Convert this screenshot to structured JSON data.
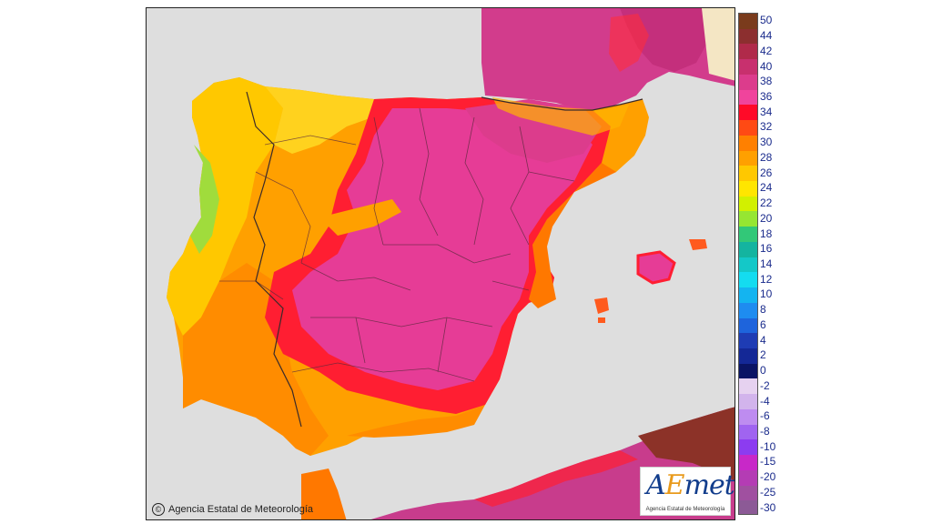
{
  "copyright": "Agencia Estatal de Meteorología",
  "logo": {
    "word_part1": "A",
    "word_part2": "E",
    "word_part3": "met",
    "subtitle": "Agencia Estatal de Meteorología"
  },
  "legend": [
    {
      "label": "50",
      "color": "#7a3b1c"
    },
    {
      "label": "44",
      "color": "#8c2f2f"
    },
    {
      "label": "42",
      "color": "#b02a4a"
    },
    {
      "label": "40",
      "color": "#c8306e"
    },
    {
      "label": "38",
      "color": "#dc3c8c"
    },
    {
      "label": "36",
      "color": "#f0449c"
    },
    {
      "label": "34",
      "color": "#ff0a28"
    },
    {
      "label": "32",
      "color": "#ff4a14"
    },
    {
      "label": "30",
      "color": "#ff8000"
    },
    {
      "label": "28",
      "color": "#ffa000"
    },
    {
      "label": "26",
      "color": "#ffc800"
    },
    {
      "label": "24",
      "color": "#ffe600"
    },
    {
      "label": "22",
      "color": "#d2f000"
    },
    {
      "label": "20",
      "color": "#96e632"
    },
    {
      "label": "18",
      "color": "#32c878"
    },
    {
      "label": "16",
      "color": "#14b4a0"
    },
    {
      "label": "14",
      "color": "#14c8c8"
    },
    {
      "label": "12",
      "color": "#14dcf0"
    },
    {
      "label": "10",
      "color": "#14b4f0"
    },
    {
      "label": "8",
      "color": "#1e8cf0"
    },
    {
      "label": "6",
      "color": "#1e64dc"
    },
    {
      "label": "4",
      "color": "#1e3cb4"
    },
    {
      "label": "2",
      "color": "#142896"
    },
    {
      "label": "0",
      "color": "#0a1464"
    },
    {
      "label": "-2",
      "color": "#e6d2f0"
    },
    {
      "label": "-4",
      "color": "#d2b4ec"
    },
    {
      "label": "-6",
      "color": "#be8cf0"
    },
    {
      "label": "-8",
      "color": "#a064f0"
    },
    {
      "label": "-10",
      "color": "#8c3cf0"
    },
    {
      "label": "-15",
      "color": "#c828c8"
    },
    {
      "label": "-20",
      "color": "#b43cb4"
    },
    {
      "label": "-25",
      "color": "#a050a0"
    },
    {
      "label": "-30",
      "color": "#8c5a96"
    }
  ]
}
